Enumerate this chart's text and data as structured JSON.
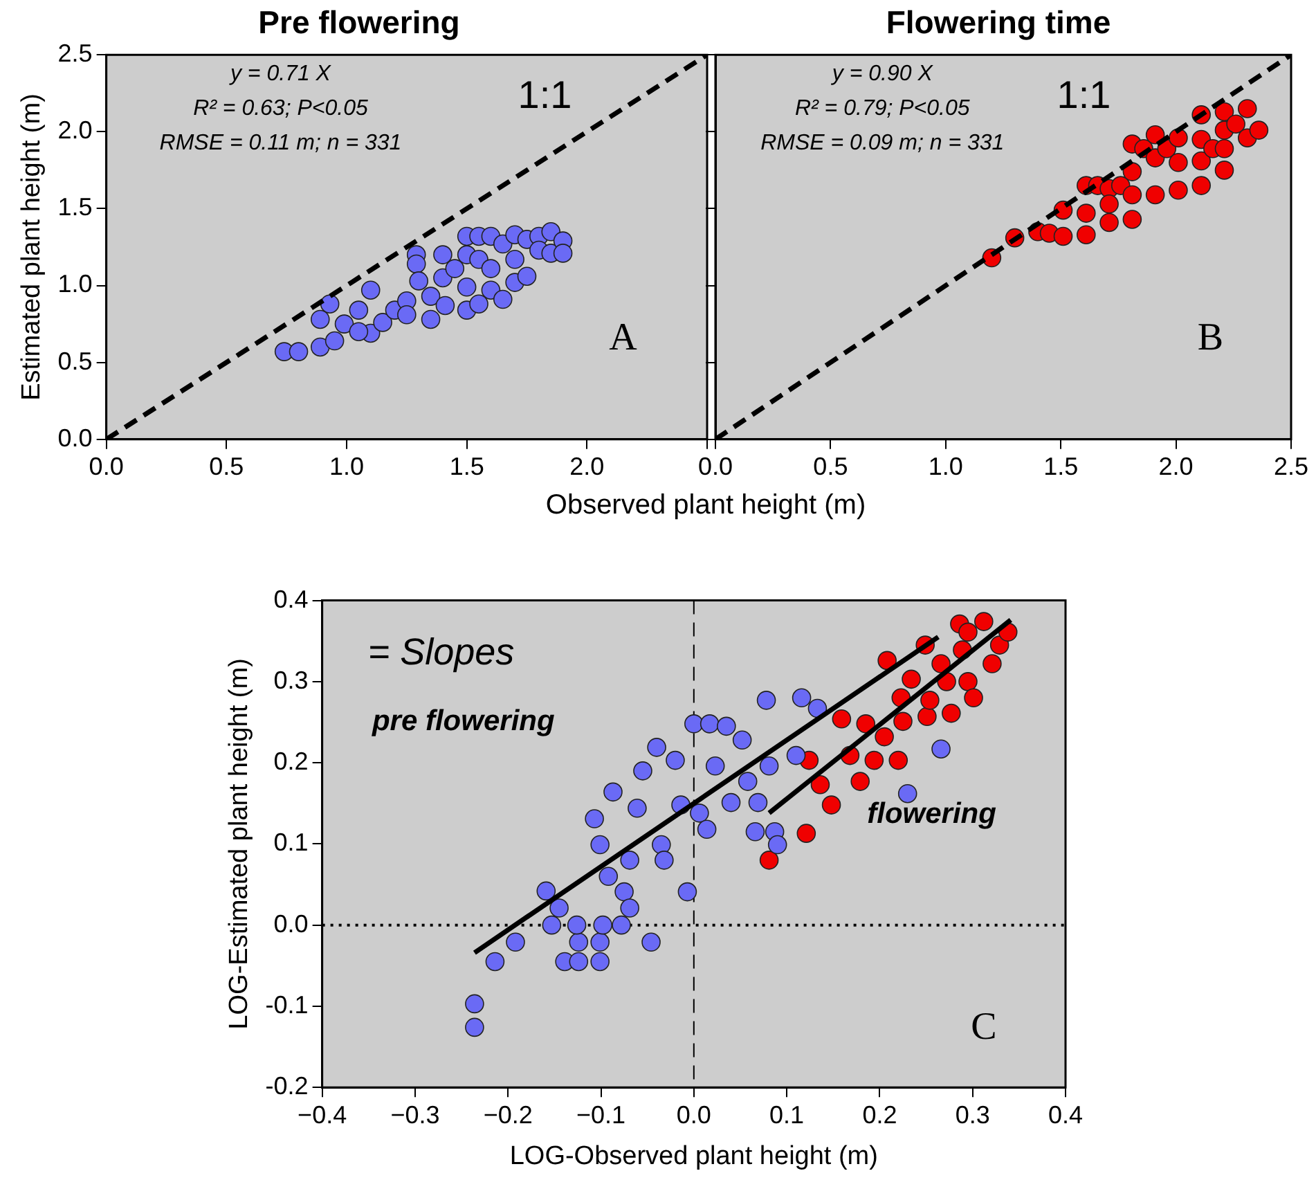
{
  "chart_data": [
    {
      "type": "scatter",
      "title": "Pre flowering",
      "xlabel": "Observed plant height (m)",
      "ylabel": "Estimated plant height (m)",
      "xlim": [
        0,
        2.5
      ],
      "xticks": [
        {
          "value": 0,
          "label": "0.0"
        },
        {
          "value": 0.5,
          "label": "0.5"
        },
        {
          "value": 1,
          "label": "1.0"
        },
        {
          "value": 1.5,
          "label": "1.5"
        },
        {
          "value": 2,
          "label": "2.0"
        },
        {
          "value": 2.5,
          "label": null
        }
      ],
      "ylim": [
        0,
        2.5
      ],
      "yticks": [
        {
          "value": 0,
          "label": "0.0"
        },
        {
          "value": 0.5,
          "label": "0.5"
        },
        {
          "value": 1,
          "label": "1.0"
        },
        {
          "value": 1.5,
          "label": "1.5"
        },
        {
          "value": 2,
          "label": "2.0"
        },
        {
          "value": 2.5,
          "label": "2.5"
        }
      ],
      "series": [
        {
          "marker": "circle",
          "color": "#6a6af5",
          "x": [
            0.74,
            0.8,
            0.89,
            0.89,
            0.93,
            0.95,
            0.99,
            1.05,
            1.1,
            1.1,
            1.15,
            1.2,
            1.25,
            1.29,
            1.29,
            1.3,
            1.35,
            1.35,
            1.4,
            1.4,
            1.45,
            1.5,
            1.5,
            1.5,
            1.5,
            1.55,
            1.55,
            1.55,
            1.6,
            1.6,
            1.6,
            1.65,
            1.65,
            1.7,
            1.7,
            1.7,
            1.75,
            1.75,
            1.8,
            1.8,
            1.85,
            1.85,
            1.9,
            1.9,
            1.41,
            1.25,
            1.05
          ],
          "values": [
            0.57,
            0.57,
            0.6,
            0.78,
            0.88,
            0.64,
            0.75,
            0.84,
            0.97,
            0.69,
            0.76,
            0.84,
            0.9,
            1.2,
            1.14,
            1.03,
            0.78,
            0.93,
            1.2,
            1.05,
            1.11,
            1.32,
            1.2,
            0.99,
            0.84,
            1.32,
            1.17,
            0.88,
            1.32,
            1.11,
            0.97,
            1.27,
            0.91,
            1.33,
            1.17,
            1.02,
            1.3,
            1.06,
            1.32,
            1.23,
            1.35,
            1.21,
            1.29,
            1.21,
            0.87,
            0.81,
            0.7
          ]
        },
        {
          "type": "line",
          "color": "#000000",
          "line_style": "dashed",
          "x": [
            0,
            2.5
          ],
          "values": [
            0,
            2.5
          ]
        }
      ],
      "annotations": [
        "y = 0.71 X",
        "R² = 0.63; P<0.05",
        "RMSE = 0.11 m; n = 331",
        "1:1",
        "A"
      ]
    },
    {
      "type": "scatter",
      "title": "Flowering time",
      "xlim": [
        0,
        2.5
      ],
      "xticks": [
        {
          "value": 0,
          "label": "0.0"
        },
        {
          "value": 0.5,
          "label": "0.5"
        },
        {
          "value": 1,
          "label": "1.0"
        },
        {
          "value": 1.5,
          "label": "1.5"
        },
        {
          "value": 2,
          "label": "2.0"
        },
        {
          "value": 2.5,
          "label": "2.5"
        }
      ],
      "ylim": [
        0,
        2.5
      ],
      "yticks": [
        {
          "value": 0,
          "label": null
        },
        {
          "value": 0.5,
          "label": null
        },
        {
          "value": 1,
          "label": null
        },
        {
          "value": 1.5,
          "label": null
        },
        {
          "value": 2,
          "label": null
        },
        {
          "value": 2.5,
          "label": null
        }
      ],
      "tick_labels": "x",
      "series": [
        {
          "marker": "circle",
          "color": "#f00000",
          "x": [
            1.2,
            1.3,
            1.4,
            1.45,
            1.51,
            1.51,
            1.61,
            1.61,
            1.61,
            1.66,
            1.71,
            1.71,
            1.71,
            1.76,
            1.81,
            1.81,
            1.81,
            1.81,
            1.86,
            1.91,
            1.91,
            1.91,
            1.96,
            2.01,
            2.01,
            2.01,
            2.11,
            2.11,
            2.11,
            2.11,
            2.16,
            2.21,
            2.21,
            2.21,
            2.21,
            2.26,
            2.31,
            2.31,
            2.36
          ],
          "values": [
            1.18,
            1.31,
            1.35,
            1.34,
            1.49,
            1.32,
            1.65,
            1.47,
            1.33,
            1.65,
            1.63,
            1.53,
            1.41,
            1.65,
            1.92,
            1.74,
            1.59,
            1.43,
            1.89,
            1.98,
            1.83,
            1.59,
            1.89,
            1.96,
            1.8,
            1.62,
            2.11,
            1.95,
            1.81,
            1.65,
            1.89,
            2.13,
            2.01,
            1.89,
            1.75,
            2.05,
            2.15,
            1.96,
            2.01
          ]
        },
        {
          "type": "line",
          "color": "#000000",
          "line_style": "dashed",
          "x": [
            0,
            2.5
          ],
          "values": [
            0,
            2.5
          ]
        }
      ],
      "annotations": [
        "y = 0.90 X",
        "R² = 0.79; P<0.05",
        "RMSE = 0.09 m; n = 331",
        "1:1",
        "B"
      ]
    },
    {
      "type": "scatter",
      "xlabel": "LOG-Observed plant height (m)",
      "ylabel": "LOG-Estimated plant height (m)",
      "xlim": [
        -0.4,
        0.4
      ],
      "xticks": [
        {
          "value": -0.4,
          "label": "−0.4"
        },
        {
          "value": -0.3,
          "label": "−0.3"
        },
        {
          "value": -0.2,
          "label": "−0.2"
        },
        {
          "value": -0.1,
          "label": "−0.1"
        },
        {
          "value": 0,
          "label": "0.0"
        },
        {
          "value": 0.1,
          "label": "0.1"
        },
        {
          "value": 0.2,
          "label": "0.2"
        },
        {
          "value": 0.3,
          "label": "0.3"
        },
        {
          "value": 0.4,
          "label": "0.4"
        }
      ],
      "ylim": [
        -0.2,
        0.4
      ],
      "yticks": [
        {
          "value": -0.2,
          "label": "-0.2"
        },
        {
          "value": -0.1,
          "label": "-0.1"
        },
        {
          "value": 0,
          "label": "0.0"
        },
        {
          "value": 0.1,
          "label": "0.1"
        },
        {
          "value": 0.2,
          "label": "0.2"
        },
        {
          "value": 0.3,
          "label": "0.3"
        },
        {
          "value": 0.4,
          "label": "0.4"
        }
      ],
      "series": [
        {
          "marker": "circle",
          "color": "#6a6af5",
          "x": [
            -0.236,
            -0.236,
            -0.214,
            -0.192,
            -0.159,
            -0.153,
            -0.145,
            -0.139,
            -0.124,
            -0.124,
            -0.126,
            -0.107,
            -0.101,
            -0.101,
            -0.098,
            -0.101,
            -0.092,
            -0.087,
            -0.078,
            -0.075,
            -0.069,
            -0.069,
            -0.061,
            -0.055,
            -0.046,
            -0.04,
            -0.035,
            -0.032,
            -0.02,
            -0.014,
            -0.007,
            0.0,
            0.006,
            0.014,
            0.017,
            0.023,
            0.035,
            0.04,
            0.052,
            0.058,
            0.066,
            0.069,
            0.078,
            0.081,
            0.087,
            0.09,
            0.116,
            0.11,
            0.133,
            0.23,
            0.266
          ],
          "values": [
            -0.097,
            -0.126,
            -0.045,
            -0.021,
            0.042,
            0.0,
            0.021,
            -0.045,
            -0.021,
            -0.045,
            0.0,
            0.131,
            -0.045,
            -0.021,
            0.0,
            0.099,
            0.06,
            0.164,
            0.0,
            0.041,
            0.021,
            0.08,
            0.144,
            0.19,
            -0.021,
            0.219,
            0.099,
            0.08,
            0.203,
            0.148,
            0.041,
            0.248,
            0.138,
            0.118,
            0.248,
            0.196,
            0.245,
            0.151,
            0.228,
            0.177,
            0.115,
            0.151,
            0.277,
            0.196,
            0.115,
            0.099,
            0.28,
            0.209,
            0.267,
            0.162,
            0.217
          ]
        },
        {
          "marker": "circle",
          "color": "#f00000",
          "x": [
            0.081,
            0.121,
            0.124,
            0.136,
            0.148,
            0.159,
            0.168,
            0.179,
            0.185,
            0.194,
            0.205,
            0.208,
            0.22,
            0.223,
            0.225,
            0.234,
            0.249,
            0.251,
            0.254,
            0.266,
            0.272,
            0.277,
            0.286,
            0.289,
            0.295,
            0.295,
            0.301,
            0.312,
            0.321,
            0.329,
            0.338
          ],
          "values": [
            0.08,
            0.113,
            0.203,
            0.173,
            0.148,
            0.254,
            0.209,
            0.177,
            0.248,
            0.203,
            0.232,
            0.326,
            0.203,
            0.28,
            0.251,
            0.303,
            0.345,
            0.257,
            0.277,
            0.322,
            0.3,
            0.261,
            0.371,
            0.339,
            0.361,
            0.3,
            0.28,
            0.374,
            0.322,
            0.345,
            0.361
          ]
        },
        {
          "type": "line",
          "color": "#000000",
          "line_style": "solid",
          "x": [
            -0.236,
            0.263
          ],
          "values": [
            -0.034,
            0.355
          ]
        },
        {
          "type": "line",
          "color": "#000000",
          "line_style": "solid",
          "x": [
            0.081,
            0.341
          ],
          "values": [
            0.138,
            0.376
          ]
        }
      ],
      "ref_lines": [
        {
          "axis": "x",
          "value": 0,
          "line_style": "dashed"
        },
        {
          "axis": "y",
          "value": 0,
          "line_style": "dotted"
        }
      ],
      "annotations": [
        "= Slopes",
        "pre flowering",
        "flowering",
        "C"
      ]
    }
  ]
}
